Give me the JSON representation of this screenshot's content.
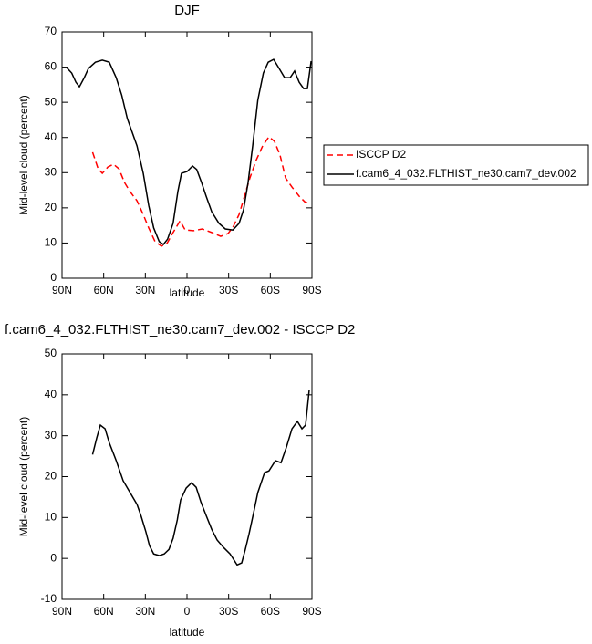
{
  "chart_data": [
    {
      "type": "line",
      "title": "DJF",
      "xlabel": "latitude",
      "ylabel": "Mid-level cloud (percent)",
      "xlim": [
        90,
        -90
      ],
      "xticks": [
        {
          "value": 90,
          "label": "90N"
        },
        {
          "value": 60,
          "label": "60N"
        },
        {
          "value": 30,
          "label": "30N"
        },
        0,
        {
          "value": -30,
          "label": "30S"
        },
        {
          "value": -60,
          "label": "60S"
        },
        {
          "value": -90,
          "label": "90S"
        }
      ],
      "ylim": [
        0,
        70
      ],
      "yticks": [
        0,
        10,
        20,
        30,
        40,
        50,
        60,
        70
      ],
      "legend": "right",
      "series": [
        {
          "name": "ISCCP D2",
          "color": "#ff0000",
          "linestyle": "dashed",
          "x": [
            68,
            64,
            61,
            57,
            53,
            49,
            45,
            41,
            36,
            31.5,
            27.6,
            23,
            18.4,
            14.4,
            10,
            5,
            1.3,
            -4.6,
            -11,
            -17.8,
            -24.3,
            -29.6,
            -33.5,
            -37.5,
            -41.4,
            -45.3,
            -50,
            -54.5,
            -59,
            -63,
            -67,
            -71,
            -75.6,
            -80.8,
            -85.4,
            -88.7
          ],
          "values": [
            35.8,
            31.1,
            29.8,
            31.6,
            32.4,
            31.1,
            27.2,
            24.6,
            22,
            18.1,
            14.3,
            10.4,
            9.1,
            9.9,
            13,
            16.3,
            13.7,
            13.5,
            14,
            13,
            11.9,
            12.7,
            14.8,
            18.1,
            23.3,
            28.5,
            33.7,
            37.6,
            40.2,
            38.9,
            35,
            28.5,
            25.9,
            23.3,
            21.5,
            21.5
          ]
        },
        {
          "name": "f.cam6_4_032.FLTHIST_ne30.cam7_dev.002",
          "color": "#000000",
          "linestyle": "solid",
          "x": [
            87,
            83,
            80,
            77.5,
            74,
            71,
            66,
            61,
            56,
            51,
            47,
            43,
            36,
            31.5,
            27.6,
            24,
            20,
            17,
            14,
            10,
            6.6,
            4,
            0,
            -4,
            -7,
            -10.5,
            -13.8,
            -17.8,
            -23,
            -27.6,
            -33,
            -37.5,
            -40.7,
            -44,
            -47.3,
            -51,
            -55,
            -58.5,
            -62.4,
            -66.4,
            -70.3,
            -74.3,
            -77.5,
            -80.8,
            -84,
            -86.7,
            -89.4
          ],
          "values": [
            60,
            58.3,
            55.7,
            54.4,
            57,
            59.6,
            61.4,
            62,
            61.4,
            57,
            52,
            45.4,
            37.6,
            29.8,
            20.7,
            14.3,
            10.4,
            9.6,
            11.1,
            15.6,
            24.6,
            29.8,
            30.3,
            31.9,
            30.9,
            27.2,
            23.3,
            18.9,
            15.6,
            14,
            13.7,
            15.6,
            19.4,
            27.2,
            37.6,
            50.6,
            58.3,
            61.4,
            62.2,
            59.6,
            57,
            57,
            58.9,
            55.7,
            53.9,
            53.9,
            61.7
          ]
        }
      ]
    },
    {
      "type": "line",
      "title": "f.cam6_4_032.FLTHIST_ne30.cam7_dev.002 - ISCCP D2",
      "xlabel": "latitude",
      "ylabel": "Mid-level cloud (percent)",
      "xlim": [
        90,
        -90
      ],
      "xticks": [
        {
          "value": 90,
          "label": "90N"
        },
        {
          "value": 60,
          "label": "60N"
        },
        {
          "value": 30,
          "label": "30N"
        },
        0,
        {
          "value": -30,
          "label": "30S"
        },
        {
          "value": -60,
          "label": "60S"
        },
        {
          "value": -90,
          "label": "90S"
        }
      ],
      "ylim": [
        -10,
        50
      ],
      "yticks": [
        -10,
        0,
        10,
        20,
        30,
        40,
        50
      ],
      "series": [
        {
          "color": "#000000",
          "linestyle": "solid",
          "x": [
            68,
            65,
            62.4,
            59,
            56,
            51,
            46,
            41,
            36,
            33,
            29.6,
            27,
            24,
            20,
            16.4,
            13,
            10,
            7,
            4.6,
            0.6,
            -3.3,
            -6.6,
            -10,
            -13.8,
            -17.8,
            -21.7,
            -26.3,
            -31,
            -33.5,
            -36.1,
            -39.4,
            -42,
            -44.7,
            -48,
            -51,
            -55.9,
            -59,
            -63.7,
            -67.7,
            -71.6,
            -75.6,
            -79.5,
            -82.8,
            -85.4,
            -88
          ],
          "values": [
            25.4,
            29.5,
            32.6,
            31.7,
            28.3,
            23.9,
            19,
            16.1,
            13.2,
            10.3,
            6.5,
            3.1,
            1.1,
            0.7,
            1.1,
            2.2,
            4.9,
            9.4,
            14.3,
            17.2,
            18.5,
            17.4,
            13.8,
            10.5,
            7.1,
            4.5,
            2.7,
            1.1,
            -0.2,
            -1.6,
            -1.1,
            2.2,
            6,
            11.2,
            16.1,
            21,
            21.4,
            23.9,
            23.4,
            27.2,
            31.7,
            33.5,
            31.7,
            32.6,
            41.1
          ]
        }
      ]
    }
  ]
}
